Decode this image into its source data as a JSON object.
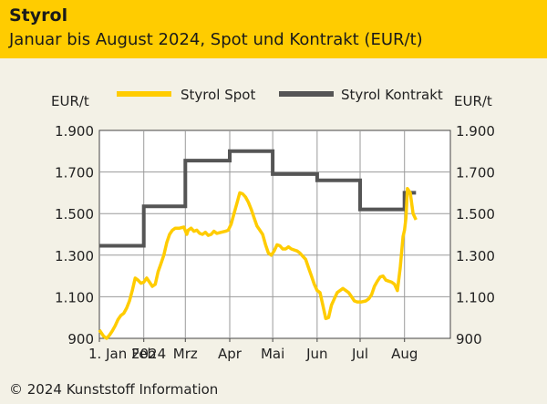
{
  "header": {
    "title": "Styrol",
    "subtitle": "Januar bis August 2024, Spot und Kontrakt (EUR/t)"
  },
  "footer": {
    "copyright": "© 2024 Kunststoff Information"
  },
  "colors": {
    "header_bg": "#ffcc00",
    "spot": "#ffcc00",
    "contract": "#555555",
    "grid": "#9a9a9a",
    "plot_bg": "#ffffff",
    "page_bg": "#f3f1e6"
  },
  "chart_data": {
    "type": "line",
    "title": "Styrol",
    "ylabel_left": "EUR/t",
    "ylabel_right": "EUR/t",
    "ylim": [
      900,
      1900
    ],
    "yticks": [
      900,
      1100,
      1300,
      1500,
      1700,
      1900
    ],
    "ytick_labels_left": [
      "900",
      "1.100",
      "1.300",
      "1.500",
      "1.700",
      "1.900"
    ],
    "ytick_labels_right": [
      "900",
      "1.100",
      "1.300",
      "1.500",
      "1.700",
      "1.900"
    ],
    "xlim": [
      0,
      245
    ],
    "xticks": [
      {
        "label": "1. Jan 2024",
        "day": 0
      },
      {
        "label": "Feb",
        "day": 31
      },
      {
        "label": "Mrz",
        "day": 60
      },
      {
        "label": "Apr",
        "day": 91
      },
      {
        "label": "Mai",
        "day": 121
      },
      {
        "label": "Jun",
        "day": 152
      },
      {
        "label": "Jul",
        "day": 182
      },
      {
        "label": "Aug",
        "day": 213
      }
    ],
    "legend": {
      "position": "top",
      "entries": [
        "Styrol Spot",
        "Styrol Kontrakt"
      ]
    },
    "series": [
      {
        "name": "Styrol Spot",
        "color": "#ffcc00",
        "style": "line",
        "points": [
          [
            0,
            940
          ],
          [
            3,
            910
          ],
          [
            5,
            900
          ],
          [
            7,
            915
          ],
          [
            9,
            935
          ],
          [
            11,
            960
          ],
          [
            13,
            990
          ],
          [
            15,
            1010
          ],
          [
            17,
            1020
          ],
          [
            19,
            1045
          ],
          [
            21,
            1080
          ],
          [
            23,
            1130
          ],
          [
            25,
            1190
          ],
          [
            27,
            1180
          ],
          [
            29,
            1165
          ],
          [
            31,
            1170
          ],
          [
            33,
            1190
          ],
          [
            35,
            1170
          ],
          [
            37,
            1150
          ],
          [
            39,
            1160
          ],
          [
            41,
            1220
          ],
          [
            43,
            1260
          ],
          [
            45,
            1300
          ],
          [
            47,
            1360
          ],
          [
            49,
            1400
          ],
          [
            51,
            1420
          ],
          [
            53,
            1430
          ],
          [
            56,
            1430
          ],
          [
            59,
            1435
          ],
          [
            61,
            1400
          ],
          [
            62,
            1420
          ],
          [
            64,
            1430
          ],
          [
            66,
            1415
          ],
          [
            68,
            1420
          ],
          [
            70,
            1405
          ],
          [
            72,
            1400
          ],
          [
            74,
            1410
          ],
          [
            76,
            1395
          ],
          [
            78,
            1400
          ],
          [
            80,
            1415
          ],
          [
            82,
            1405
          ],
          [
            85,
            1410
          ],
          [
            88,
            1415
          ],
          [
            90,
            1420
          ],
          [
            92,
            1450
          ],
          [
            94,
            1500
          ],
          [
            96,
            1550
          ],
          [
            98,
            1600
          ],
          [
            100,
            1595
          ],
          [
            102,
            1580
          ],
          [
            104,
            1555
          ],
          [
            106,
            1520
          ],
          [
            108,
            1480
          ],
          [
            110,
            1440
          ],
          [
            112,
            1420
          ],
          [
            114,
            1400
          ],
          [
            116,
            1350
          ],
          [
            118,
            1310
          ],
          [
            120,
            1300
          ],
          [
            122,
            1320
          ],
          [
            124,
            1350
          ],
          [
            126,
            1345
          ],
          [
            128,
            1330
          ],
          [
            130,
            1330
          ],
          [
            132,
            1340
          ],
          [
            134,
            1330
          ],
          [
            136,
            1325
          ],
          [
            138,
            1320
          ],
          [
            140,
            1310
          ],
          [
            142,
            1295
          ],
          [
            144,
            1280
          ],
          [
            146,
            1240
          ],
          [
            148,
            1200
          ],
          [
            150,
            1160
          ],
          [
            152,
            1130
          ],
          [
            154,
            1120
          ],
          [
            156,
            1060
          ],
          [
            158,
            995
          ],
          [
            160,
            1000
          ],
          [
            162,
            1060
          ],
          [
            164,
            1090
          ],
          [
            166,
            1120
          ],
          [
            168,
            1130
          ],
          [
            170,
            1140
          ],
          [
            172,
            1130
          ],
          [
            174,
            1120
          ],
          [
            176,
            1100
          ],
          [
            178,
            1080
          ],
          [
            180,
            1075
          ],
          [
            183,
            1075
          ],
          [
            186,
            1080
          ],
          [
            188,
            1090
          ],
          [
            190,
            1110
          ],
          [
            192,
            1150
          ],
          [
            194,
            1175
          ],
          [
            196,
            1195
          ],
          [
            198,
            1200
          ],
          [
            200,
            1180
          ],
          [
            202,
            1175
          ],
          [
            204,
            1170
          ],
          [
            206,
            1160
          ],
          [
            208,
            1130
          ],
          [
            210,
            1240
          ],
          [
            212,
            1390
          ],
          [
            213,
            1420
          ],
          [
            214,
            1480
          ],
          [
            215,
            1620
          ],
          [
            217,
            1600
          ],
          [
            219,
            1500
          ],
          [
            221,
            1470
          ]
        ]
      },
      {
        "name": "Styrol Kontrakt",
        "color": "#555555",
        "style": "step",
        "points": [
          [
            0,
            1345
          ],
          [
            31,
            1345
          ],
          [
            31,
            1535
          ],
          [
            60,
            1535
          ],
          [
            60,
            1755
          ],
          [
            91,
            1755
          ],
          [
            91,
            1800
          ],
          [
            121,
            1800
          ],
          [
            121,
            1690
          ],
          [
            152,
            1690
          ],
          [
            152,
            1660
          ],
          [
            182,
            1660
          ],
          [
            182,
            1520
          ],
          [
            213,
            1520
          ],
          [
            213,
            1600
          ],
          [
            221,
            1600
          ]
        ]
      }
    ]
  }
}
